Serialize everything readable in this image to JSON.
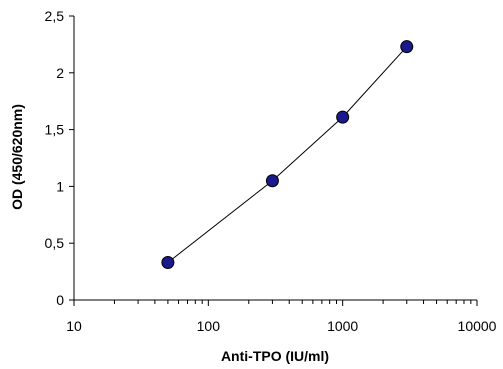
{
  "chart_data": {
    "type": "scatter",
    "xlabel": "Anti-TPO  (IU/ml)",
    "ylabel": "OD (450/620nm)",
    "x_scale": "log",
    "xlim": [
      10,
      10000
    ],
    "ylim": [
      0,
      2.5
    ],
    "x_ticks": [
      "10",
      "100",
      "1000",
      "10000"
    ],
    "y_ticks": [
      "0",
      "0,5",
      "1",
      "1,5",
      "2",
      "2,5"
    ],
    "grid": false,
    "legend": "none",
    "series": [
      {
        "x": [
          50,
          300,
          1000,
          3000
        ],
        "y": [
          0.33,
          1.05,
          1.61,
          2.23
        ],
        "marker_color": "#1a1a8c",
        "line_color": "#000000"
      }
    ]
  }
}
